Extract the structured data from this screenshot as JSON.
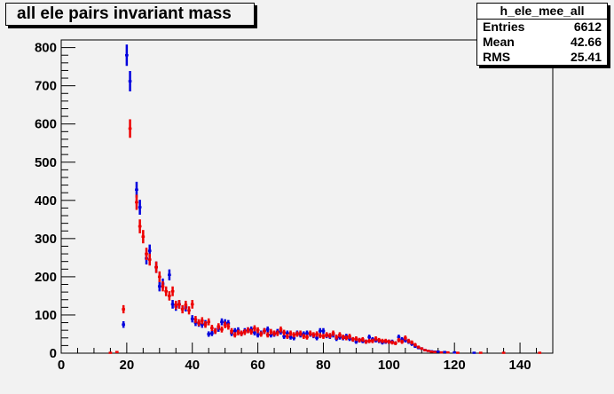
{
  "title": "all ele pairs invariant mass",
  "stats": {
    "name": "h_ele_mee_all",
    "rows": [
      {
        "label": "Entries",
        "value": "6612"
      },
      {
        "label": "Mean",
        "value": "42.66"
      },
      {
        "label": "RMS",
        "value": "25.41"
      }
    ]
  },
  "colors": {
    "frame_bg": "#f2f2f2",
    "series_blue": "#0000dd",
    "series_red": "#ee0000"
  },
  "chart_data": {
    "type": "scatter",
    "title": "all ele pairs invariant mass",
    "xlim": [
      0,
      150
    ],
    "ylim": [
      0,
      820
    ],
    "x_ticks": [
      0,
      20,
      40,
      60,
      80,
      100,
      120,
      140
    ],
    "y_ticks": [
      0,
      100,
      200,
      300,
      400,
      500,
      600,
      700,
      800
    ],
    "grid": false,
    "legend": "none",
    "series": [
      {
        "color": "#0000dd",
        "x": [
          19,
          20,
          21,
          22,
          23,
          24,
          25,
          26,
          27,
          28,
          29,
          30,
          31,
          32,
          33,
          34,
          35,
          36,
          37,
          38,
          39,
          40,
          41,
          42,
          43,
          44,
          45,
          46,
          47,
          48,
          49,
          50,
          51,
          52,
          53,
          54,
          55,
          56,
          57,
          58,
          59,
          60,
          61,
          62,
          63,
          64,
          65,
          66,
          67,
          68,
          69,
          70,
          71,
          72,
          73,
          74,
          75,
          76,
          77,
          78,
          79,
          80,
          81,
          82,
          83,
          84,
          85,
          86,
          87,
          88,
          89,
          90,
          91,
          92,
          93,
          94,
          95,
          96,
          97,
          98,
          99,
          100,
          101,
          102,
          103,
          104,
          105,
          106,
          107,
          108,
          109,
          110,
          111,
          112,
          113,
          114,
          115,
          117,
          120,
          126
        ],
        "values": [
          75,
          780,
          712,
          0,
          428,
          382,
          0,
          248,
          268,
          0,
          225,
          175,
          182,
          0,
          205,
          128,
          122,
          128,
          0,
          120,
          0,
          90,
          80,
          78,
          75,
          78,
          50,
          52,
          58,
          64,
          82,
          80,
          78,
          52,
          58,
          60,
          52,
          58,
          60,
          62,
          54,
          48,
          52,
          58,
          62,
          48,
          50,
          56,
          56,
          44,
          52,
          42,
          40,
          52,
          48,
          50,
          52,
          50,
          46,
          40,
          58,
          58,
          46,
          44,
          48,
          38,
          42,
          40,
          44,
          38,
          36,
          30,
          34,
          32,
          30,
          42,
          36,
          34,
          32,
          28,
          30,
          30,
          30,
          26,
          42,
          36,
          34,
          30,
          24,
          18,
          14,
          12,
          8,
          6,
          5,
          4,
          4,
          3,
          2,
          1
        ]
      },
      {
        "color": "#ee0000",
        "x": [
          15,
          17,
          19,
          21,
          23,
          24,
          25,
          26,
          27,
          28,
          29,
          30,
          31,
          32,
          33,
          34,
          35,
          36,
          37,
          38,
          39,
          40,
          41,
          42,
          43,
          44,
          45,
          46,
          47,
          48,
          49,
          50,
          51,
          52,
          53,
          54,
          55,
          56,
          57,
          58,
          59,
          60,
          61,
          62,
          63,
          64,
          65,
          66,
          67,
          68,
          69,
          70,
          71,
          72,
          73,
          74,
          75,
          76,
          77,
          78,
          79,
          80,
          81,
          82,
          83,
          84,
          85,
          86,
          87,
          88,
          89,
          90,
          91,
          92,
          93,
          94,
          95,
          96,
          97,
          98,
          99,
          100,
          101,
          102,
          103,
          104,
          105,
          106,
          107,
          108,
          109,
          110,
          111,
          112,
          113,
          114,
          116,
          118,
          121,
          128,
          135,
          146
        ],
        "values": [
          1,
          3,
          115,
          588,
          395,
          332,
          305,
          260,
          245,
          0,
          225,
          200,
          175,
          162,
          150,
          162,
          126,
          128,
          115,
          126,
          112,
          128,
          88,
          80,
          85,
          75,
          82,
          66,
          58,
          70,
          62,
          74,
          70,
          58,
          48,
          54,
          52,
          55,
          60,
          56,
          65,
          60,
          50,
          58,
          48,
          56,
          52,
          52,
          62,
          54,
          44,
          52,
          48,
          50,
          52,
          44,
          42,
          52,
          48,
          50,
          46,
          44,
          48,
          46,
          52,
          42,
          48,
          42,
          40,
          44,
          36,
          38,
          34,
          36,
          30,
          32,
          32,
          38,
          34,
          32,
          32,
          30,
          28,
          26,
          34,
          30,
          40,
          32,
          28,
          22,
          16,
          12,
          8,
          6,
          4,
          3,
          2,
          2,
          1,
          1,
          1,
          1
        ]
      }
    ]
  }
}
